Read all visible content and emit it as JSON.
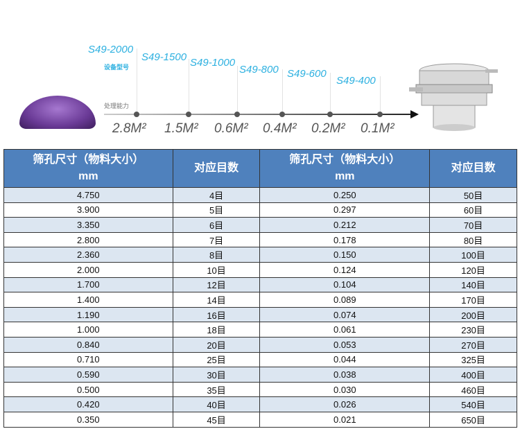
{
  "banner": {
    "models": [
      "S49-2000",
      "S49-1500",
      "S49-1000",
      "S49-800",
      "S49-600",
      "S49-400"
    ],
    "model_label": "设备型号",
    "capacity_label": "处理能力",
    "capacities": [
      "2.8M²",
      "1.5M²",
      "0.6M²",
      "0.4M²",
      "0.2M²",
      "0.1M²"
    ],
    "colors": {
      "model_text": "#2cb0e0",
      "material": "#6a3a96"
    }
  },
  "table": {
    "headers": {
      "size": "筛孔尺寸（物料大小）",
      "unit": "mm",
      "mesh": "对应目数"
    },
    "header_color": "#4f81bd",
    "left": [
      [
        "4.750",
        "4目"
      ],
      [
        "3.900",
        "5目"
      ],
      [
        "3.350",
        "6目"
      ],
      [
        "2.800",
        "7目"
      ],
      [
        "2.360",
        "8目"
      ],
      [
        "2.000",
        "10目"
      ],
      [
        "1.700",
        "12目"
      ],
      [
        "1.400",
        "14目"
      ],
      [
        "1.190",
        "16目"
      ],
      [
        "1.000",
        "18目"
      ],
      [
        "0.840",
        "20目"
      ],
      [
        "0.710",
        "25目"
      ],
      [
        "0.590",
        "30目"
      ],
      [
        "0.500",
        "35目"
      ],
      [
        "0.420",
        "40目"
      ],
      [
        "0.350",
        "45目"
      ]
    ],
    "right": [
      [
        "0.250",
        "50目"
      ],
      [
        "0.297",
        "60目"
      ],
      [
        "0.212",
        "70目"
      ],
      [
        "0.178",
        "80目"
      ],
      [
        "0.150",
        "100目"
      ],
      [
        "0.124",
        "120目"
      ],
      [
        "0.104",
        "140目"
      ],
      [
        "0.089",
        "170目"
      ],
      [
        "0.074",
        "200目"
      ],
      [
        "0.061",
        "230目"
      ],
      [
        "0.053",
        "270目"
      ],
      [
        "0.044",
        "325目"
      ],
      [
        "0.038",
        "400目"
      ],
      [
        "0.030",
        "460目"
      ],
      [
        "0.026",
        "540目"
      ],
      [
        "0.021",
        "650目"
      ]
    ]
  }
}
